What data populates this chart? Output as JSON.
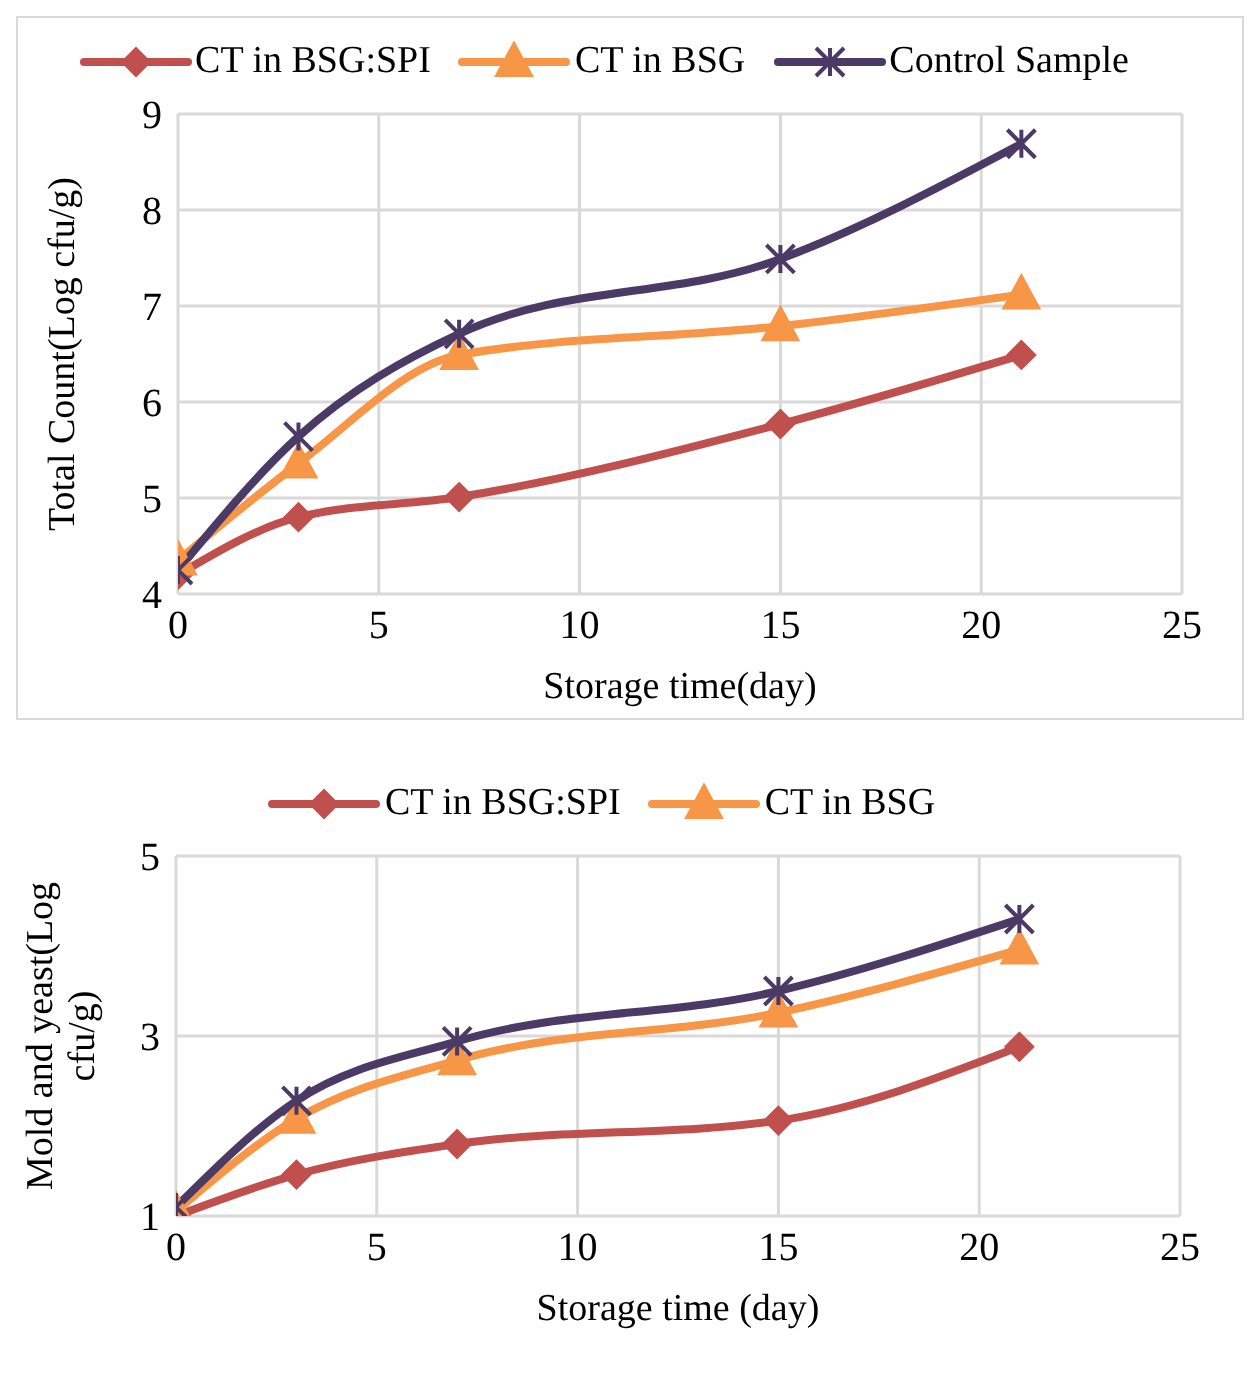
{
  "chart_data": [
    {
      "type": "line",
      "xlabel": "Storage time(day)",
      "ylabel": "Total Count(Log cfu/g)",
      "x": [
        0,
        3,
        7,
        15,
        21
      ],
      "xlim": [
        0,
        25
      ],
      "xticks": [
        0,
        5,
        10,
        15,
        20,
        25
      ],
      "ylim": [
        4,
        9
      ],
      "yticks": [
        4,
        5,
        6,
        7,
        8,
        9
      ],
      "grid": true,
      "legend": "top",
      "series": [
        {
          "name": "CT in BSG:SPI",
          "color": "#c0504d",
          "marker": "diamond",
          "values": [
            4.2,
            4.8,
            5.01,
            5.77,
            6.49
          ]
        },
        {
          "name": "CT in BSG",
          "color": "#f79646",
          "marker": "triangle",
          "values": [
            4.35,
            5.36,
            6.49,
            6.79,
            7.12
          ]
        },
        {
          "name": "Control Sample",
          "color": "#4b3a66",
          "marker": "cross",
          "values": [
            4.25,
            5.64,
            6.71,
            7.49,
            8.69
          ]
        }
      ]
    },
    {
      "type": "line",
      "xlabel": "Storage time (day)",
      "ylabel": "Mold and yeast(Log cfu/g)",
      "x": [
        0,
        3,
        7,
        15,
        21
      ],
      "xlim": [
        0,
        25
      ],
      "xticks": [
        0,
        5,
        10,
        15,
        20,
        25
      ],
      "ylim": [
        1,
        5
      ],
      "yticks": [
        1,
        3,
        5
      ],
      "grid": true,
      "legend": "top",
      "series": [
        {
          "name": "CT in BSG:SPI",
          "color": "#c0504d",
          "marker": "diamond",
          "values": [
            1.0,
            1.46,
            1.8,
            2.06,
            2.88
          ]
        },
        {
          "name": "CT in BSG",
          "color": "#f79646",
          "marker": "triangle",
          "values": [
            1.05,
            2.08,
            2.73,
            3.26,
            3.96
          ]
        },
        {
          "color": "#4b3a66",
          "marker": "cross",
          "values": [
            1.1,
            2.28,
            2.94,
            3.5,
            4.3
          ]
        }
      ]
    }
  ]
}
